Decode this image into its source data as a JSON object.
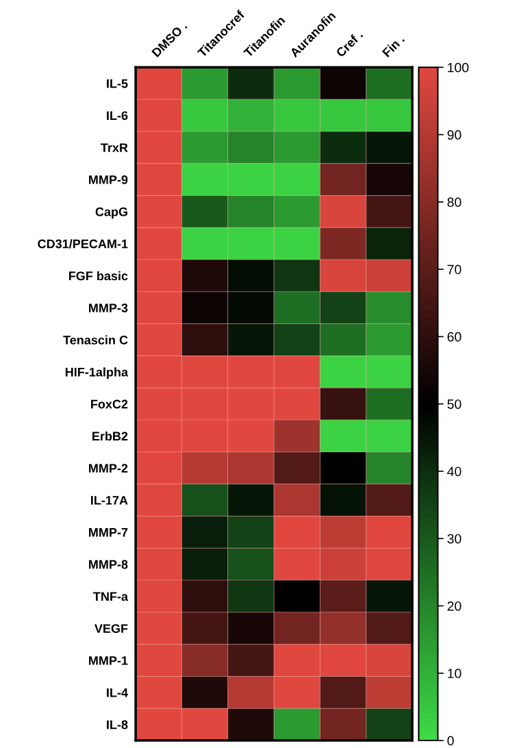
{
  "chart_data": {
    "type": "heatmap",
    "categories": [
      "DMSO .",
      "Titanocref",
      "Titanofin",
      "Auranofin",
      "Cref .",
      "Fin ."
    ],
    "y_categories": [
      "IL-5",
      "IL-6",
      "TrxR",
      "MMP-9",
      "CapG",
      "CD31/PECAM-1",
      "FGF basic",
      "MMP-3",
      "Tenascin C",
      "HIF-1alpha",
      "FoxC2",
      "ErbB2",
      "MMP-2",
      "IL-17A",
      "MMP-7",
      "MMP-8",
      "TNF-a",
      "VEGF",
      "MMP-1",
      "IL-4",
      "IL-8"
    ],
    "cells": [
      [
        100,
        15,
        40,
        15,
        53,
        25
      ],
      [
        100,
        5,
        10,
        5,
        5,
        5
      ],
      [
        100,
        15,
        20,
        15,
        40,
        45
      ],
      [
        100,
        2,
        2,
        2,
        75,
        55
      ],
      [
        100,
        30,
        20,
        15,
        98,
        65
      ],
      [
        100,
        2,
        2,
        2,
        78,
        42
      ],
      [
        100,
        57,
        47,
        38,
        98,
        95
      ],
      [
        100,
        53,
        48,
        25,
        35,
        18
      ],
      [
        100,
        60,
        45,
        35,
        25,
        15
      ],
      [
        100,
        100,
        100,
        100,
        2,
        2
      ],
      [
        100,
        100,
        100,
        100,
        62,
        25
      ],
      [
        100,
        100,
        100,
        85,
        2,
        2
      ],
      [
        100,
        90,
        88,
        68,
        50,
        20
      ],
      [
        100,
        32,
        45,
        88,
        46,
        68
      ],
      [
        100,
        43,
        35,
        100,
        92,
        100
      ],
      [
        100,
        43,
        32,
        100,
        95,
        100
      ],
      [
        100,
        60,
        38,
        50,
        70,
        45
      ],
      [
        100,
        65,
        55,
        75,
        83,
        68
      ],
      [
        100,
        80,
        65,
        100,
        100,
        98
      ],
      [
        100,
        57,
        90,
        100,
        68,
        92
      ],
      [
        100,
        100,
        57,
        15,
        75,
        35
      ]
    ],
    "clim": [
      0,
      100
    ],
    "cticks": [
      0,
      10,
      20,
      30,
      40,
      50,
      60,
      70,
      80,
      90,
      100
    ]
  }
}
